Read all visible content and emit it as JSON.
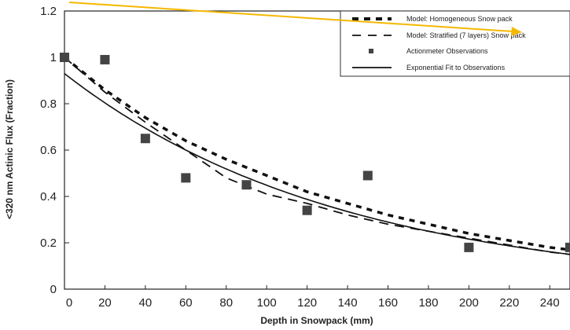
{
  "chart_data": {
    "type": "line",
    "title": "",
    "xlabel": "Depth in Snowpack (mm)",
    "ylabel": "<320 nm Actinic Flux (Fraction)",
    "xlim": [
      0,
      250
    ],
    "ylim": [
      0,
      1.2
    ],
    "x_ticks": [
      "0",
      "20",
      "40",
      "60",
      "80",
      "100",
      "120",
      "140",
      "160",
      "180",
      "200",
      "220",
      "240"
    ],
    "y_ticks": [
      "0",
      "0.2",
      "0.4",
      "0.6",
      "0.8",
      "1",
      "1.2"
    ],
    "grid": false,
    "legend_position": "top-right",
    "series": [
      {
        "name": "Model: Homogeneous Snow pack",
        "style": "dotted-heavy",
        "color": "#111111",
        "x": [
          0,
          20,
          40,
          60,
          80,
          100,
          120,
          140,
          160,
          180,
          200,
          220,
          240,
          250
        ],
        "y": [
          1.0,
          0.86,
          0.74,
          0.64,
          0.56,
          0.49,
          0.42,
          0.37,
          0.32,
          0.28,
          0.24,
          0.21,
          0.18,
          0.17
        ]
      },
      {
        "name": "Model: Stratified (7 layers) Snow pack",
        "style": "dashed",
        "color": "#111111",
        "x": [
          0,
          20,
          40,
          60,
          80,
          100,
          120,
          140,
          160,
          180,
          200,
          220,
          240,
          250
        ],
        "y": [
          1.0,
          0.85,
          0.72,
          0.6,
          0.48,
          0.41,
          0.37,
          0.32,
          0.28,
          0.25,
          0.22,
          0.19,
          0.16,
          0.15
        ]
      },
      {
        "name": "Actionmeter Observations",
        "style": "markers",
        "color": "#444444",
        "x": [
          0,
          20,
          40,
          60,
          90,
          120,
          150,
          200,
          250
        ],
        "y": [
          1.0,
          0.99,
          0.65,
          0.48,
          0.45,
          0.34,
          0.49,
          0.18,
          0.18
        ]
      },
      {
        "name": "Exponential Fit to Observations",
        "style": "solid",
        "color": "#111111",
        "fit": {
          "a": 0.93,
          "k": 0.0073
        },
        "x": [
          0,
          20,
          40,
          60,
          80,
          100,
          120,
          140,
          160,
          180,
          200,
          220,
          240,
          250
        ],
        "y": [
          0.93,
          0.8,
          0.69,
          0.6,
          0.52,
          0.45,
          0.39,
          0.33,
          0.29,
          0.25,
          0.22,
          0.19,
          0.16,
          0.15
        ]
      }
    ],
    "annotation": {
      "type": "arrow",
      "color": "#f5b800",
      "points_to": "Model: Stratified (7 layers) Snow pack"
    }
  }
}
